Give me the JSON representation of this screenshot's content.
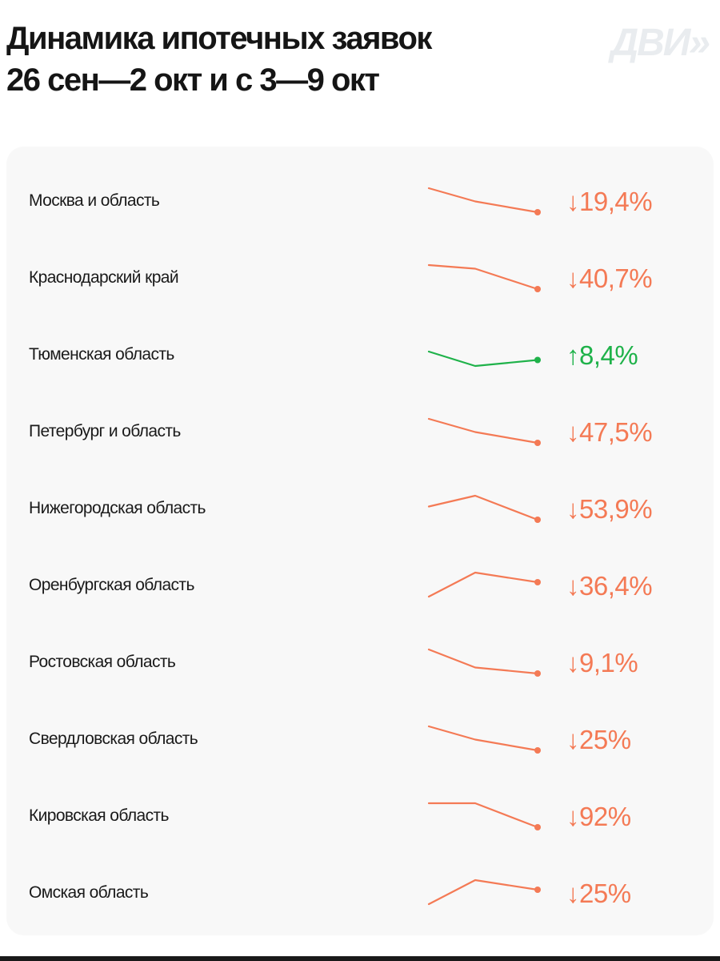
{
  "header": {
    "title_line1": "Динамика ипотечных заявок",
    "title_line2": "26 сен—2 окт и с 3—9 окт",
    "logo_text": "ДВИ»"
  },
  "colors": {
    "down": "#f47a55",
    "up": "#1fb24a"
  },
  "chart_data": {
    "type": "table",
    "columns": [
      "region",
      "trend",
      "change"
    ],
    "rows": [
      {
        "region": "Москва и область",
        "change_label": "↓19,4%",
        "direction": "down",
        "change_pct": -19.4,
        "trend": [
          1.0,
          0.45,
          0.0
        ]
      },
      {
        "region": "Краснодарский край",
        "change_label": "↓40,7%",
        "direction": "down",
        "change_pct": -40.7,
        "trend": [
          1.0,
          0.85,
          0.0
        ]
      },
      {
        "region": "Тюменская область",
        "change_label": "↑8,4%",
        "direction": "up",
        "change_pct": 8.4,
        "trend": [
          0.6,
          0.0,
          0.25
        ]
      },
      {
        "region": "Петербург и область",
        "change_label": "↓47,5%",
        "direction": "down",
        "change_pct": -47.5,
        "trend": [
          1.0,
          0.45,
          0.0
        ]
      },
      {
        "region": "Нижегородская область",
        "change_label": "↓53,9%",
        "direction": "down",
        "change_pct": -53.9,
        "trend": [
          0.55,
          1.0,
          0.0
        ]
      },
      {
        "region": "Оренбургская область",
        "change_label": "↓36,4%",
        "direction": "down",
        "change_pct": -36.4,
        "trend": [
          0.0,
          1.0,
          0.6
        ]
      },
      {
        "region": "Ростовская область",
        "change_label": "↓9,1%",
        "direction": "down",
        "change_pct": -9.1,
        "trend": [
          1.0,
          0.25,
          0.0
        ]
      },
      {
        "region": "Свердловская область",
        "change_label": "↓25%",
        "direction": "down",
        "change_pct": -25,
        "trend": [
          1.0,
          0.45,
          0.0
        ]
      },
      {
        "region": "Кировская область",
        "change_label": "↓92%",
        "direction": "down",
        "change_pct": -92,
        "trend": [
          1.0,
          1.0,
          0.0
        ]
      },
      {
        "region": "Омская область",
        "change_label": "↓25%",
        "direction": "down",
        "change_pct": -25,
        "trend": [
          0.0,
          1.0,
          0.6
        ]
      }
    ]
  }
}
